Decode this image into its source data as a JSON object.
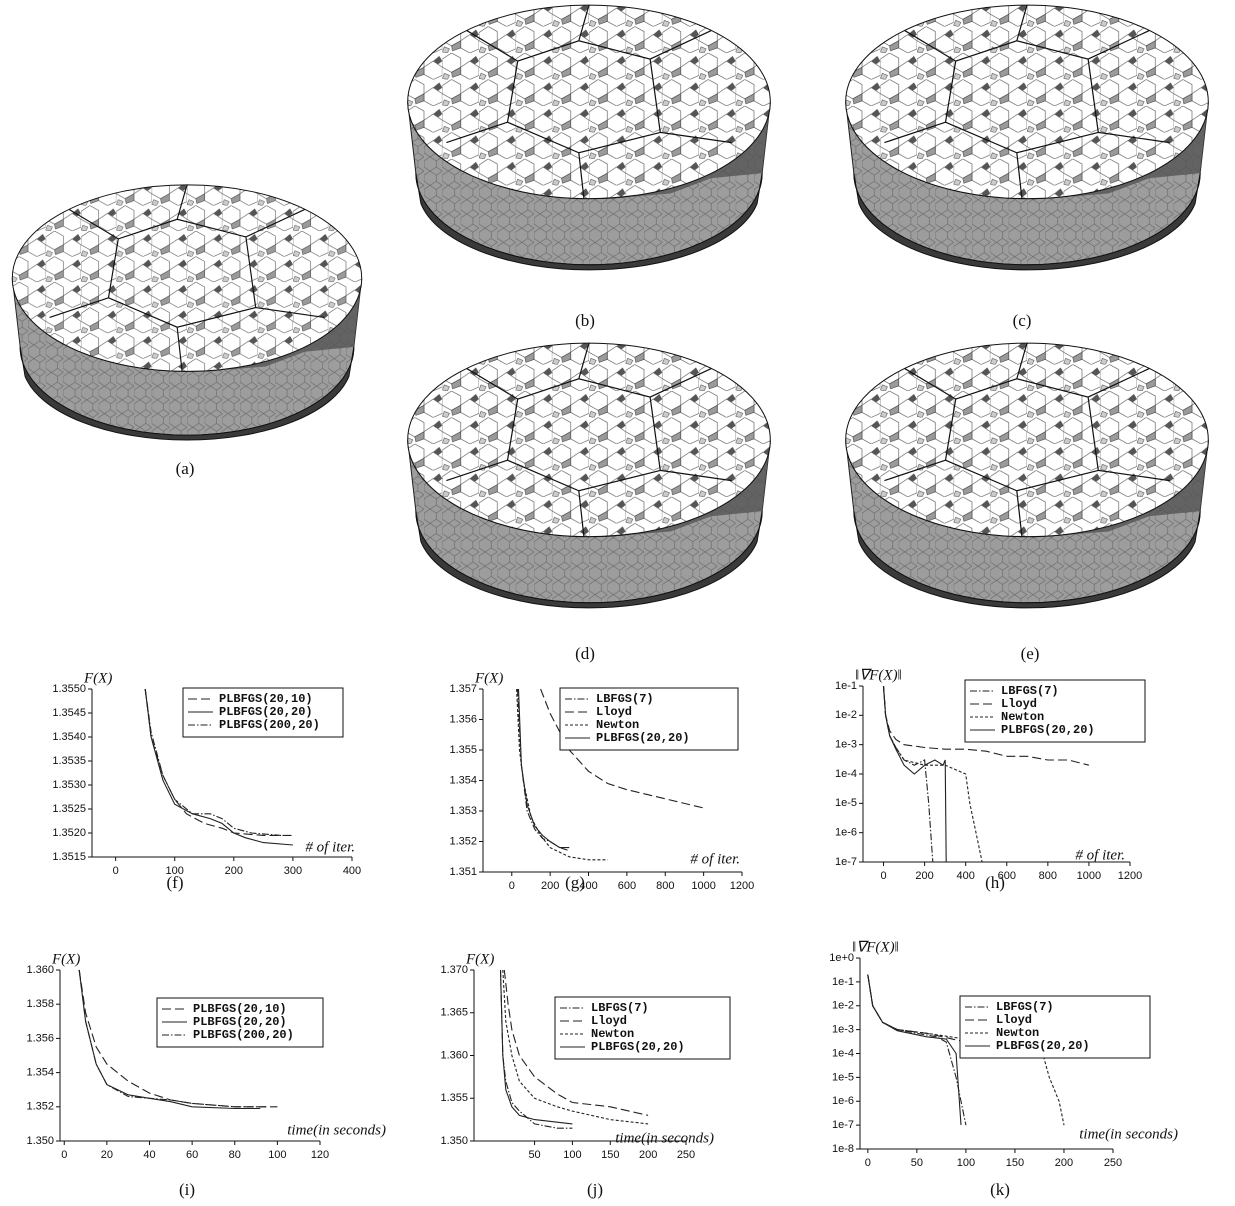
{
  "figures": [
    "(a)",
    "(b)",
    "(c)",
    "(d)",
    "(e)"
  ],
  "chart_data": [
    {
      "type": "line",
      "caption": "(f)",
      "ylabel": "F(X)",
      "xlabel": "# of iter.",
      "legend": "upper right",
      "ylog": false,
      "xlim": [
        -40,
        400
      ],
      "xticks": [
        0,
        100,
        200,
        300,
        400
      ],
      "ylim": [
        1.3515,
        1.355
      ],
      "yticks": [
        1.3515,
        {
          "value": 1.352,
          "label": "1.3520"
        },
        1.3525,
        {
          "value": 1.353,
          "label": "1.3530"
        },
        1.3535,
        {
          "value": 1.354,
          "label": "1.3540"
        },
        1.3545,
        {
          "value": 1.355,
          "label": "1.3550"
        }
      ],
      "series": [
        {
          "name": "PLBFGS(20,10)",
          "color": "#222",
          "dash": "dashed",
          "x": [
            50,
            60,
            80,
            100,
            120,
            150,
            180,
            200,
            250,
            300
          ],
          "values": [
            1.355,
            1.354,
            1.3532,
            1.3527,
            1.3524,
            1.3522,
            1.3521,
            1.352,
            1.35195,
            1.35195
          ]
        },
        {
          "name": "PLBFGS(20,20)",
          "color": "#222",
          "dash": "solid",
          "x": [
            50,
            60,
            80,
            100,
            130,
            160,
            180,
            200,
            220,
            250,
            300
          ],
          "values": [
            1.355,
            1.354,
            1.3531,
            1.3526,
            1.3524,
            1.3523,
            1.3522,
            1.352,
            1.3519,
            1.3518,
            1.35175
          ]
        },
        {
          "name": "PLBFGS(200,20)",
          "color": "#222",
          "dash": "dashdot",
          "x": [
            50,
            60,
            80,
            100,
            130,
            160,
            180,
            200,
            230,
            280
          ],
          "values": [
            1.355,
            1.3541,
            1.3532,
            1.3527,
            1.3524,
            1.3524,
            1.3523,
            1.3521,
            1.352,
            1.35195
          ]
        }
      ]
    },
    {
      "type": "line",
      "caption": "(g)",
      "ylabel": "F(X)",
      "xlabel": "# of iter.",
      "legend": "upper right",
      "ylog": false,
      "xlim": [
        -150,
        1200
      ],
      "xticks": [
        0,
        200,
        400,
        600,
        800,
        1000,
        1200
      ],
      "ylim": [
        1.351,
        1.357
      ],
      "yticks": [
        1.351,
        1.352,
        1.353,
        1.354,
        1.355,
        1.356,
        1.357
      ],
      "series": [
        {
          "name": "LBFGS(7)",
          "color": "#222",
          "dash": "dashdot",
          "x": [
            30,
            50,
            80,
            120,
            160,
            200,
            250,
            300
          ],
          "values": [
            1.357,
            1.3545,
            1.353,
            1.3524,
            1.3521,
            1.352,
            1.3518,
            1.3517
          ]
        },
        {
          "name": "Lloyd",
          "color": "#222",
          "dash": "dashed",
          "x": [
            150,
            200,
            300,
            400,
            500,
            600,
            800,
            1000
          ],
          "values": [
            1.357,
            1.3562,
            1.355,
            1.3543,
            1.3539,
            1.3537,
            1.3534,
            1.3531
          ]
        },
        {
          "name": "Newton",
          "color": "#222",
          "dash": "short",
          "x": [
            25,
            40,
            60,
            100,
            150,
            200,
            300,
            400,
            500
          ],
          "values": [
            1.357,
            1.355,
            1.354,
            1.3528,
            1.3522,
            1.3518,
            1.3515,
            1.3514,
            1.3514
          ]
        },
        {
          "name": "PLBFGS(20,20)",
          "color": "#222",
          "dash": "solid",
          "x": [
            35,
            50,
            80,
            120,
            160,
            200,
            250,
            300
          ],
          "values": [
            1.357,
            1.3545,
            1.3532,
            1.3525,
            1.3522,
            1.352,
            1.3518,
            1.3518
          ]
        }
      ]
    },
    {
      "type": "line",
      "caption": "(h)",
      "ylabel": "‖∇F(X)‖",
      "xlabel": "# of iter.",
      "legend": "upper right",
      "ylog": true,
      "xlim": [
        -100,
        1200
      ],
      "xticks": [
        0,
        200,
        400,
        600,
        800,
        1000,
        1200
      ],
      "ylim": [
        1e-07,
        0.1
      ],
      "yticks": [
        {
          "value": 0.1,
          "label": "1e-1"
        },
        {
          "value": 0.01,
          "label": "1e-2"
        },
        {
          "value": 0.001,
          "label": "1e-3"
        },
        {
          "value": 0.0001,
          "label": "1e-4"
        },
        {
          "value": 1e-05,
          "label": "1e-5"
        },
        {
          "value": 1e-06,
          "label": "1e-6"
        },
        {
          "value": 1e-07,
          "label": "1e-7"
        }
      ],
      "series": [
        {
          "name": "LBFGS(7)",
          "color": "#222",
          "dash": "dashdot",
          "x": [
            0,
            10,
            30,
            60,
            100,
            150,
            200,
            220,
            240
          ],
          "values": [
            0.1,
            0.01,
            0.002,
            0.0008,
            0.0003,
            0.0002,
            0.0003,
            1e-05,
            1e-07
          ]
        },
        {
          "name": "Lloyd",
          "color": "#222",
          "dash": "dashed",
          "x": [
            0,
            10,
            30,
            60,
            100,
            200,
            300,
            400,
            500,
            600,
            700,
            800,
            900,
            1000
          ],
          "values": [
            0.1,
            0.01,
            0.003,
            0.0015,
            0.001,
            0.0008,
            0.0007,
            0.0007,
            0.0006,
            0.0004,
            0.0004,
            0.0003,
            0.0003,
            0.0002
          ]
        },
        {
          "name": "Newton",
          "color": "#222",
          "dash": "short",
          "x": [
            0,
            10,
            30,
            60,
            100,
            200,
            300,
            400,
            420,
            450,
            480
          ],
          "values": [
            0.1,
            0.01,
            0.002,
            0.0008,
            0.0003,
            0.0002,
            0.0002,
            0.0001,
            1e-05,
            1e-06,
            1e-07
          ]
        },
        {
          "name": "PLBFGS(20,20)",
          "color": "#222",
          "dash": "solid",
          "x": [
            0,
            10,
            30,
            60,
            100,
            150,
            200,
            250,
            290,
            300,
            305
          ],
          "values": [
            0.1,
            0.01,
            0.002,
            0.0007,
            0.0002,
            0.0001,
            0.0002,
            0.0003,
            0.0002,
            0.0003,
            1e-07
          ]
        }
      ]
    },
    {
      "type": "line",
      "caption": "(i)",
      "ylabel": "F(X)",
      "xlabel": "time(in seconds)",
      "legend": "upper right",
      "ylog": false,
      "xlim": [
        -2,
        120
      ],
      "xticks": [
        0,
        20,
        40,
        60,
        80,
        100,
        120
      ],
      "ylim": [
        1.35,
        1.36
      ],
      "yticks": [
        {
          "value": 1.35,
          "label": "1.350"
        },
        1.352,
        1.354,
        1.356,
        1.358,
        {
          "value": 1.36,
          "label": "1.360"
        }
      ],
      "series": [
        {
          "name": "PLBFGS(20,10)",
          "color": "#222",
          "dash": "dashed",
          "x": [
            7,
            10,
            15,
            20,
            30,
            40,
            50,
            60,
            80,
            100
          ],
          "values": [
            1.36,
            1.3575,
            1.3555,
            1.3545,
            1.3535,
            1.3528,
            1.3524,
            1.3522,
            1.352,
            1.352
          ]
        },
        {
          "name": "PLBFGS(20,20)",
          "color": "#222",
          "dash": "solid",
          "x": [
            7,
            10,
            15,
            20,
            30,
            40,
            50,
            60,
            80,
            92
          ],
          "values": [
            1.36,
            1.357,
            1.3545,
            1.3533,
            1.3527,
            1.3525,
            1.3523,
            1.352,
            1.3519,
            1.3519
          ]
        },
        {
          "name": "PLBFGS(200,20)",
          "color": "#222",
          "dash": "dashdot",
          "x": [
            7,
            10,
            15,
            20,
            30,
            40,
            50,
            60,
            80,
            95
          ],
          "values": [
            1.36,
            1.357,
            1.3545,
            1.3533,
            1.3526,
            1.3525,
            1.3524,
            1.3522,
            1.352,
            1.352
          ]
        }
      ]
    },
    {
      "type": "line",
      "caption": "(j)",
      "ylabel": "F(X)",
      "xlabel": "time(in seconds)",
      "legend": "upper right",
      "ylog": false,
      "xlim": [
        -30,
        250
      ],
      "xticks": [
        50,
        100,
        150,
        200,
        250
      ],
      "ylim": [
        1.35,
        1.37
      ],
      "yticks": [
        {
          "value": 1.35,
          "label": "1.350"
        },
        1.355,
        {
          "value": 1.36,
          "label": "1.360"
        },
        1.365,
        {
          "value": 1.37,
          "label": "1.370"
        }
      ],
      "series": [
        {
          "name": "LBFGS(7)",
          "color": "#222",
          "dash": "dashdot",
          "x": [
            5,
            8,
            12,
            20,
            30,
            50,
            80,
            100
          ],
          "values": [
            1.37,
            1.36,
            1.357,
            1.3545,
            1.3535,
            1.352,
            1.3515,
            1.3515
          ]
        },
        {
          "name": "Lloyd",
          "color": "#222",
          "dash": "dashed",
          "x": [
            10,
            15,
            20,
            30,
            50,
            80,
            100,
            150,
            200
          ],
          "values": [
            1.37,
            1.366,
            1.363,
            1.36,
            1.3575,
            1.3555,
            1.3545,
            1.354,
            1.353
          ]
        },
        {
          "name": "Newton",
          "color": "#222",
          "dash": "short",
          "x": [
            8,
            12,
            20,
            30,
            50,
            80,
            100,
            150,
            200
          ],
          "values": [
            1.37,
            1.364,
            1.36,
            1.357,
            1.355,
            1.354,
            1.3535,
            1.3525,
            1.352
          ]
        },
        {
          "name": "PLBFGS(20,20)",
          "color": "#222",
          "dash": "solid",
          "x": [
            5,
            8,
            12,
            20,
            30,
            50,
            80,
            100
          ],
          "values": [
            1.37,
            1.36,
            1.356,
            1.354,
            1.353,
            1.3525,
            1.3522,
            1.352
          ]
        }
      ]
    },
    {
      "type": "line",
      "caption": "(k)",
      "ylabel": "‖∇F(X)‖",
      "xlabel": "time(in seconds)",
      "legend": "upper right",
      "ylog": true,
      "xlim": [
        -8,
        250
      ],
      "xticks": [
        0,
        50,
        100,
        150,
        200,
        250
      ],
      "ylim": [
        1e-08,
        1
      ],
      "yticks": [
        {
          "value": 1,
          "label": "1e+0"
        },
        {
          "value": 0.1,
          "label": "1e-1"
        },
        {
          "value": 0.01,
          "label": "1e-2"
        },
        {
          "value": 0.001,
          "label": "1e-3"
        },
        {
          "value": 0.0001,
          "label": "1e-4"
        },
        {
          "value": 1e-05,
          "label": "1e-5"
        },
        {
          "value": 1e-06,
          "label": "1e-6"
        },
        {
          "value": 1e-07,
          "label": "1e-7"
        },
        {
          "value": 1e-08,
          "label": "1e-8"
        }
      ],
      "series": [
        {
          "name": "LBFGS(7)",
          "color": "#222",
          "dash": "dashdot",
          "x": [
            0,
            5,
            15,
            30,
            50,
            70,
            80,
            90,
            95,
            100
          ],
          "values": [
            0.2,
            0.01,
            0.002,
            0.001,
            0.0007,
            0.0005,
            0.0003,
            1e-05,
            1e-06,
            1e-07
          ]
        },
        {
          "name": "Lloyd",
          "color": "#222",
          "dash": "dashed",
          "x": [
            0,
            5,
            15,
            30,
            60,
            100,
            120,
            150,
            180,
            200
          ],
          "values": [
            0.2,
            0.01,
            0.002,
            0.001,
            0.0007,
            0.0003,
            0.0003,
            0.0003,
            0.0002,
            0.0002
          ]
        },
        {
          "name": "Newton",
          "color": "#222",
          "dash": "short",
          "x": [
            0,
            5,
            15,
            30,
            60,
            100,
            150,
            175,
            185,
            195,
            200
          ],
          "values": [
            0.2,
            0.01,
            0.002,
            0.001,
            0.0007,
            0.0004,
            0.0003,
            0.0003,
            1e-05,
            1e-06,
            1e-07
          ]
        },
        {
          "name": "PLBFGS(20,20)",
          "color": "#222",
          "dash": "solid",
          "x": [
            0,
            5,
            15,
            30,
            60,
            80,
            90,
            95
          ],
          "values": [
            0.2,
            0.01,
            0.002,
            0.0009,
            0.0005,
            0.0004,
            0.0001,
            1e-07
          ]
        }
      ]
    }
  ]
}
